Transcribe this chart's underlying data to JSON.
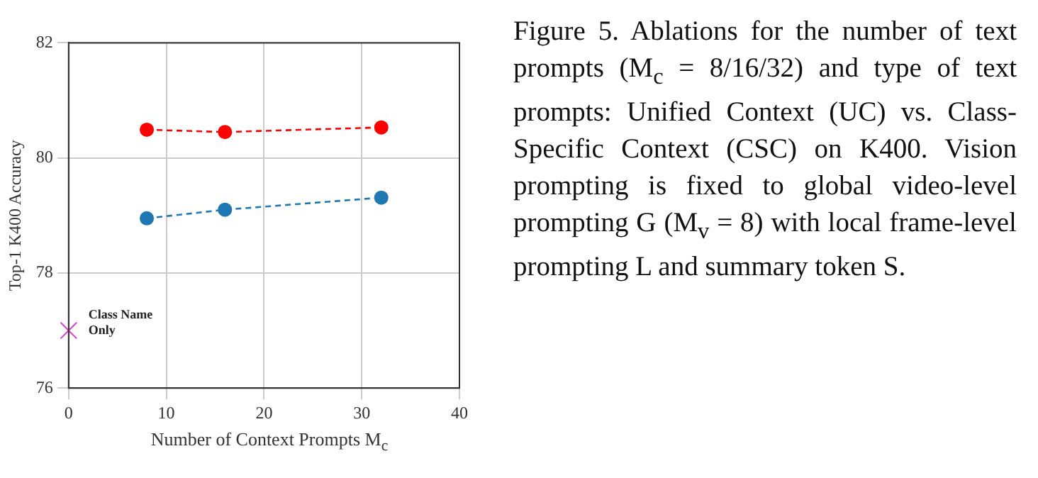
{
  "chart_data": {
    "type": "line",
    "ylabel": "Top-1 K400 Accuracy",
    "xlabel": "Number of Context Prompts M$_{c}$",
    "xlim": [
      0,
      40
    ],
    "xticks": [
      0,
      10,
      20,
      30,
      40
    ],
    "ylim": [
      76,
      82
    ],
    "yticks": [
      76,
      78,
      80,
      82
    ],
    "grid": true,
    "legend": false,
    "series": [
      {
        "color": "#ff0000",
        "x": [
          8,
          16,
          32
        ],
        "values": [
          80.49,
          80.45,
          80.53
        ],
        "marker": "circle",
        "line_style": "dashed"
      },
      {
        "color": "#1f77b4",
        "x": [
          8,
          16,
          32
        ],
        "values": [
          78.95,
          79.1,
          79.31
        ],
        "marker": "circle",
        "line_style": "dashed"
      },
      {
        "type": "scatter",
        "color": "#d63fd6",
        "x": [
          0
        ],
        "values": [
          77
        ],
        "marker": "cross"
      }
    ],
    "annotations": [
      {
        "text": "Class Name Only",
        "x": 0,
        "y": 77
      },
      "Figure 5. Ablations for the number of text prompts (M$_{c}$ = 8/16/32) and type of text prompts: Unified Context (UC) vs. Class-Specific Context (CSC) on K400. Vision prompting is fixed to global video-level prompting G (M$_{v}$ = 8) with local frame-level prompting L and summary token S."
    ]
  }
}
